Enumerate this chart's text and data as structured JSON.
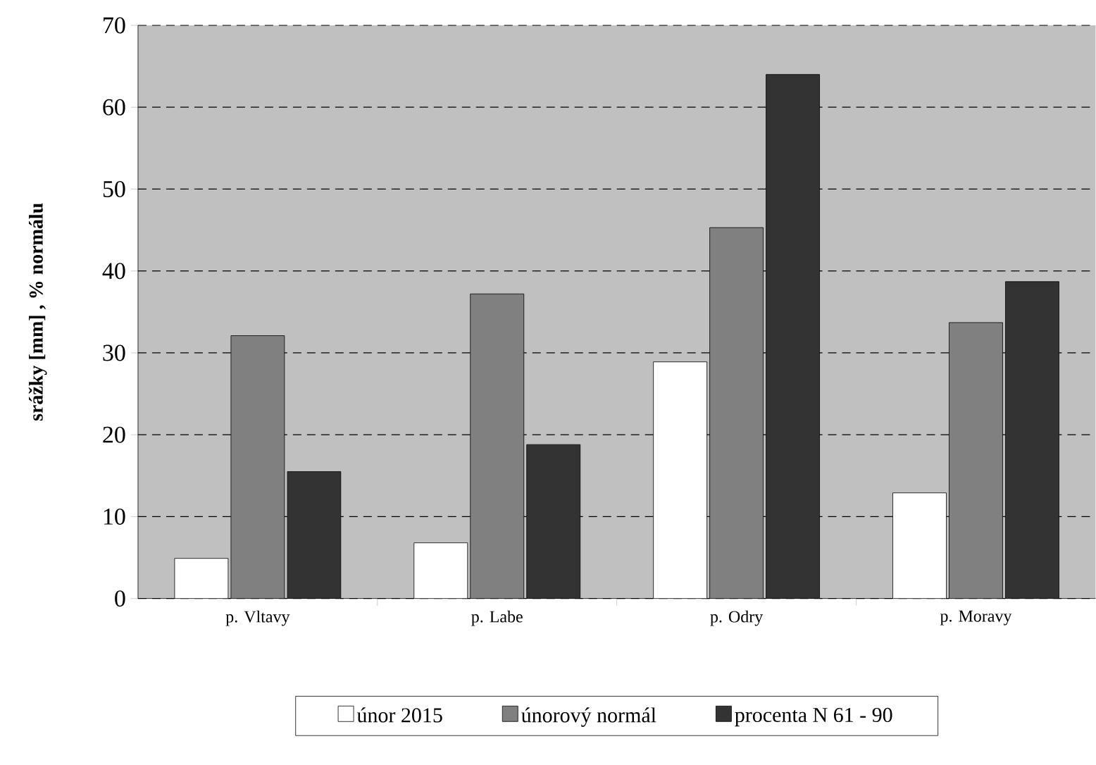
{
  "chart_data": {
    "type": "bar",
    "ylabel": "srážky [mm] ,    % normálu",
    "categories": [
      "p. Vltavy",
      "p. Labe",
      "p. Odry",
      "p. Moravy"
    ],
    "series": [
      {
        "name": "únor 2015",
        "color": "#ffffff",
        "values": [
          4.9,
          6.8,
          28.9,
          12.9
        ]
      },
      {
        "name": "únorový normál",
        "color": "#808080",
        "values": [
          32.1,
          37.2,
          45.3,
          33.7
        ]
      },
      {
        "name": "procenta N 61 - 90",
        "color": "#333333",
        "values": [
          15.5,
          18.8,
          64.0,
          38.7
        ]
      }
    ],
    "ylim": [
      0,
      70
    ],
    "yticks": [
      0,
      10,
      20,
      30,
      40,
      50,
      60,
      70
    ],
    "grid": "y",
    "legend": "bottom"
  }
}
